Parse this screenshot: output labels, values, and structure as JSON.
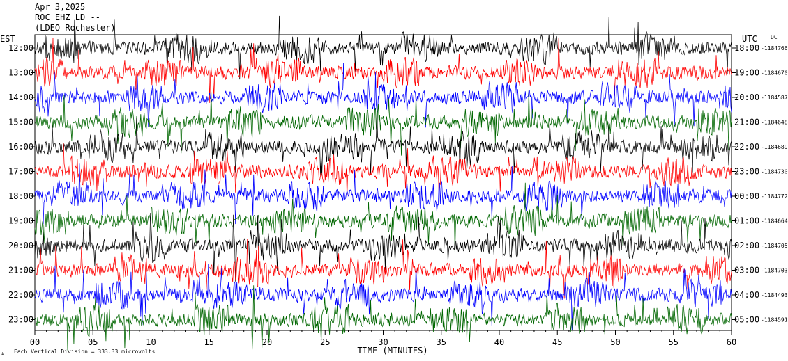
{
  "header": {
    "date": "Apr 3,2025",
    "station": "ROC EHZ LD --",
    "location": "(LDEO Rochester)"
  },
  "left_axis_title": "EST",
  "right_axis_title": "UTC",
  "dc_label": "DC",
  "x_axis_title": "TIME (MINUTES)",
  "footer_note": "Each Vertical Division = 333.33 microvolts",
  "footer_mark": "A",
  "chart_data": {
    "type": "line",
    "title": "",
    "xlabel": "TIME (MINUTES)",
    "ylabel": "",
    "xlim": [
      0,
      60
    ],
    "x_ticks": [
      "00",
      "05",
      "10",
      "15",
      "20",
      "25",
      "30",
      "35",
      "40",
      "45",
      "50",
      "55",
      "60"
    ],
    "trace_colors": [
      "#000000",
      "#ff0000",
      "#0000ff",
      "#006600"
    ],
    "rows": [
      {
        "est": "12:00",
        "utc": "18:00",
        "dc": "-1184766"
      },
      {
        "est": "13:00",
        "utc": "19:00",
        "dc": "-1184670"
      },
      {
        "est": "14:00",
        "utc": "20:00",
        "dc": "-1184587"
      },
      {
        "est": "15:00",
        "utc": "21:00",
        "dc": "-1184648"
      },
      {
        "est": "16:00",
        "utc": "22:00",
        "dc": "-1184689"
      },
      {
        "est": "17:00",
        "utc": "23:00",
        "dc": "-1184730"
      },
      {
        "est": "18:00",
        "utc": "00:00",
        "dc": "-1184772"
      },
      {
        "est": "19:00",
        "utc": "01:00",
        "dc": "-1184664"
      },
      {
        "est": "20:00",
        "utc": "02:00",
        "dc": "-1184705"
      },
      {
        "est": "21:00",
        "utc": "03:00",
        "dc": "-1184703"
      },
      {
        "est": "22:00",
        "utc": "04:00",
        "dc": "-1184493"
      },
      {
        "est": "23:00",
        "utc": "05:00",
        "dc": "-1184591"
      }
    ],
    "scale_microvolts_per_division": 333.33
  }
}
